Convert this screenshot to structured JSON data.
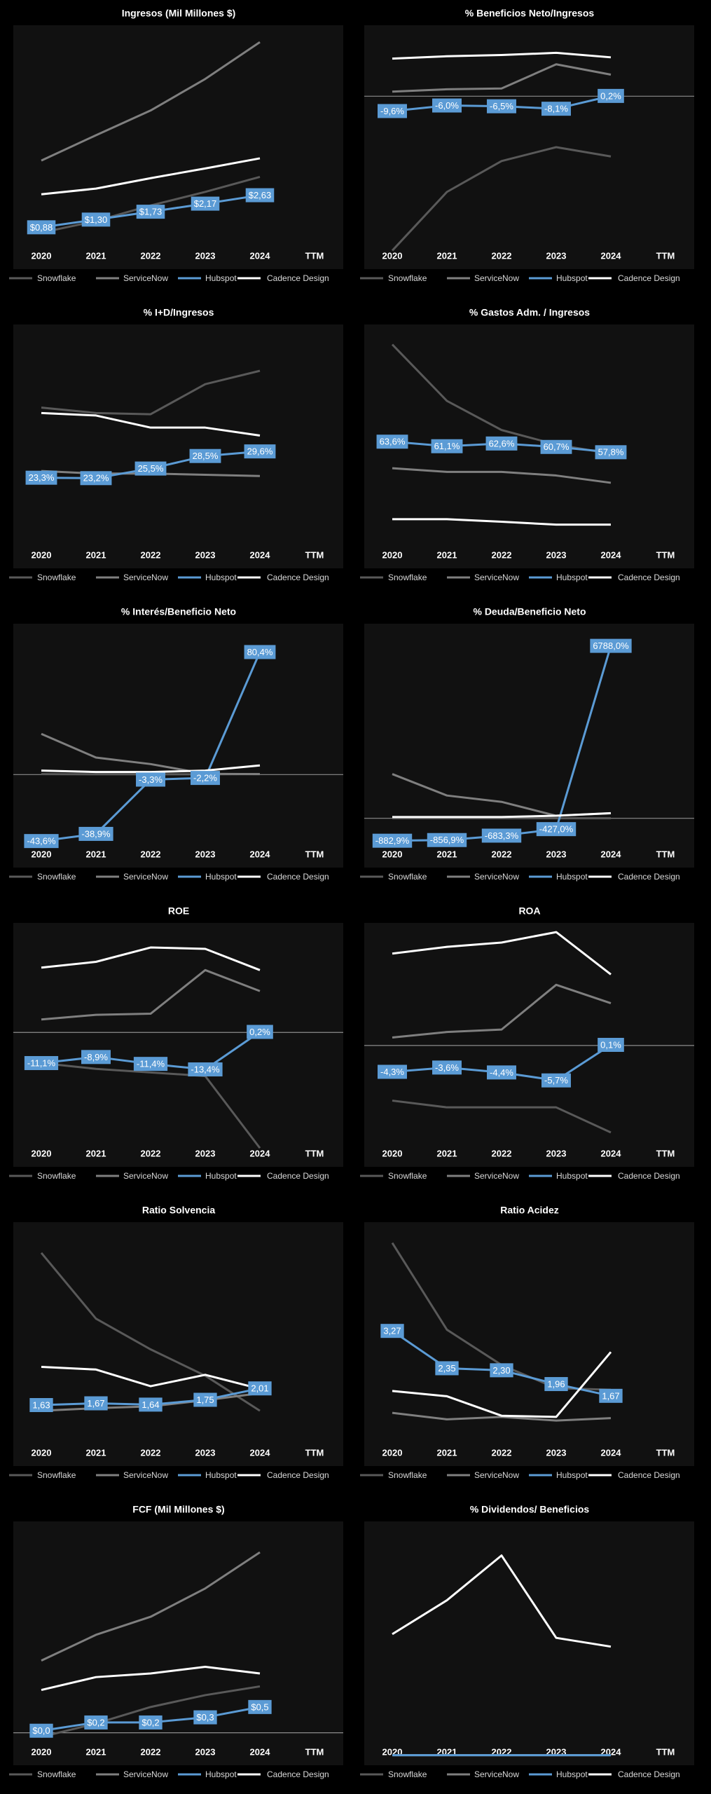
{
  "chart_data": [
    {
      "type": "line",
      "title": "Ingresos (Mil Millones $)",
      "categories": [
        "2020",
        "2021",
        "2022",
        "2023",
        "2024",
        "TTM"
      ],
      "ylim": [
        -1.4,
        11.9
      ],
      "zero_line": false,
      "series": [
        {
          "name": "Snowflake",
          "color": "#595959",
          "values": [
            0.59,
            1.22,
            2.07,
            2.81,
            3.63,
            null
          ]
        },
        {
          "name": "ServiceNow",
          "color": "#7f7f7f",
          "values": [
            4.52,
            5.9,
            7.25,
            8.97,
            10.98,
            null
          ]
        },
        {
          "name": "Hubspot",
          "color": "#5b9bd5",
          "values": [
            0.88,
            1.3,
            1.73,
            2.17,
            2.63,
            null
          ],
          "value_labels": [
            "$0,88",
            "$1,30",
            "$1,73",
            "$2,17",
            "$2,63",
            null
          ]
        },
        {
          "name": "Cadence Design",
          "color": "#ffffff",
          "values": [
            2.68,
            2.99,
            3.56,
            4.09,
            4.64,
            null
          ]
        }
      ]
    },
    {
      "type": "line",
      "title": "% Beneficios Neto/Ingresos",
      "categories": [
        "2020",
        "2021",
        "2022",
        "2023",
        "2024",
        "TTM"
      ],
      "ylim": [
        -112,
        46
      ],
      "zero_line": true,
      "series": [
        {
          "name": "Snowflake",
          "color": "#595959",
          "values": [
            -100,
            -62,
            -42,
            -33,
            -39,
            null
          ]
        },
        {
          "name": "ServiceNow",
          "color": "#7f7f7f",
          "values": [
            3,
            4.5,
            5,
            20.7,
            14,
            null
          ]
        },
        {
          "name": "Hubspot",
          "color": "#5b9bd5",
          "values": [
            -9.6,
            -6.0,
            -6.5,
            -8.1,
            0.2,
            null
          ],
          "value_labels": [
            "-9,6%",
            "-6,0%",
            "-6,5%",
            "-8,1%",
            "0,2%",
            null
          ]
        },
        {
          "name": "Cadence Design",
          "color": "#ffffff",
          "values": [
            24.4,
            25.9,
            26.7,
            28.1,
            25.2,
            null
          ]
        }
      ]
    },
    {
      "type": "line",
      "title": "% I+D/Ingresos",
      "categories": [
        "2020",
        "2021",
        "2022",
        "2023",
        "2024",
        "TTM"
      ],
      "ylim": [
        1.6,
        60
      ],
      "zero_line": false,
      "series": [
        {
          "name": "Snowflake",
          "color": "#595959",
          "values": [
            40.1,
            38.8,
            38.5,
            45.7,
            48.9,
            null
          ]
        },
        {
          "name": "ServiceNow",
          "color": "#7f7f7f",
          "values": [
            24.9,
            24.3,
            24.3,
            24.0,
            23.7,
            null
          ]
        },
        {
          "name": "Hubspot",
          "color": "#5b9bd5",
          "values": [
            23.3,
            23.2,
            25.5,
            28.5,
            29.6,
            null
          ],
          "value_labels": [
            "23,3%",
            "23,2%",
            "25,5%",
            "28,5%",
            "29,6%",
            null
          ]
        },
        {
          "name": "Cadence Design",
          "color": "#ffffff",
          "values": [
            38.8,
            38.2,
            35.3,
            35.3,
            33.4,
            null
          ]
        }
      ]
    },
    {
      "type": "line",
      "title": "% Gastos Adm. / Ingresos",
      "categories": [
        "2020",
        "2021",
        "2022",
        "2023",
        "2024",
        "TTM"
      ],
      "ylim": [
        -6,
        128
      ],
      "zero_line": false,
      "series": [
        {
          "name": "Snowflake",
          "color": "#595959",
          "values": [
            117,
            86,
            70,
            62,
            57,
            null
          ]
        },
        {
          "name": "ServiceNow",
          "color": "#7f7f7f",
          "values": [
            49,
            47,
            47,
            45,
            41,
            null
          ]
        },
        {
          "name": "Hubspot",
          "color": "#5b9bd5",
          "values": [
            63.6,
            61.1,
            62.6,
            60.7,
            57.8,
            null
          ],
          "value_labels": [
            "63,6%",
            "61,1%",
            "62,6%",
            "60,7%",
            "57,8%",
            null
          ]
        },
        {
          "name": "Cadence Design",
          "color": "#ffffff",
          "values": [
            21,
            21,
            19.6,
            18,
            18,
            null
          ]
        }
      ]
    },
    {
      "type": "line",
      "title": "% Interés/Beneficio Neto",
      "categories": [
        "2020",
        "2021",
        "2022",
        "2023",
        "2024",
        "TTM"
      ],
      "ylim": [
        -61,
        99
      ],
      "zero_line": true,
      "series": [
        {
          "name": "Snowflake",
          "color": "#595959",
          "values": [
            0.3,
            0.2,
            0.2,
            0.2,
            0.3,
            null
          ]
        },
        {
          "name": "ServiceNow",
          "color": "#7f7f7f",
          "values": [
            26.7,
            11.2,
            6.9,
            0.5,
            0.3,
            null
          ]
        },
        {
          "name": "Hubspot",
          "color": "#5b9bd5",
          "values": [
            -43.6,
            -38.9,
            -3.3,
            -2.2,
            80.4,
            null
          ],
          "value_labels": [
            "-43,6%",
            "-38,9%",
            "-3,3%",
            "-2,2%",
            "80,4%",
            null
          ]
        },
        {
          "name": "Cadence Design",
          "color": "#ffffff",
          "values": [
            2.6,
            1.7,
            1.7,
            2.6,
            6.0,
            null
          ]
        }
      ]
    },
    {
      "type": "line",
      "title": "% Deuda/Beneficio Neto",
      "categories": [
        "2020",
        "2021",
        "2022",
        "2023",
        "2024",
        "TTM"
      ],
      "ylim": [
        -1940,
        7660
      ],
      "zero_line": true,
      "series": [
        {
          "name": "Snowflake",
          "color": "#595959",
          "values": [
            0,
            0,
            0,
            0,
            0,
            null
          ]
        },
        {
          "name": "ServiceNow",
          "color": "#7f7f7f",
          "values": [
            1741,
            896,
            647,
            100,
            199,
            null
          ]
        },
        {
          "name": "Hubspot",
          "color": "#5b9bd5",
          "values": [
            -882.9,
            -856.9,
            -683.3,
            -427.0,
            6788.0,
            null
          ],
          "value_labels": [
            "-882,9%",
            "-856,9%",
            "-683,3%",
            "-427,0%",
            "6788,0%",
            null
          ]
        },
        {
          "name": "Cadence Design",
          "color": "#ffffff",
          "values": [
            50,
            50,
            50,
            100,
            200,
            null
          ]
        }
      ]
    },
    {
      "type": "line",
      "title": "ROE",
      "categories": [
        "2020",
        "2021",
        "2022",
        "2023",
        "2024",
        "TTM"
      ],
      "ylim": [
        -48.7,
        39.7
      ],
      "zero_line": true,
      "series": [
        {
          "name": "Snowflake",
          "color": "#595959",
          "values": [
            -11.1,
            -13.2,
            -14.5,
            -15.8,
            -41.9,
            null
          ]
        },
        {
          "name": "ServiceNow",
          "color": "#7f7f7f",
          "values": [
            4.7,
            6.4,
            6.8,
            22.6,
            15.0,
            null
          ]
        },
        {
          "name": "Hubspot",
          "color": "#5b9bd5",
          "values": [
            -11.1,
            -8.9,
            -11.4,
            -13.4,
            0.2,
            null
          ],
          "value_labels": [
            "-11,1%",
            "-8,9%",
            "-11,4%",
            "-13,4%",
            "0,2%",
            null
          ]
        },
        {
          "name": "Cadence Design",
          "color": "#ffffff",
          "values": [
            23.5,
            25.6,
            30.8,
            30.3,
            22.6,
            null
          ]
        }
      ]
    },
    {
      "type": "line",
      "title": "ROA",
      "categories": [
        "2020",
        "2021",
        "2022",
        "2023",
        "2024",
        "TTM"
      ],
      "ylim": [
        -19.8,
        20
      ],
      "zero_line": true,
      "series": [
        {
          "name": "Snowflake",
          "color": "#595959",
          "values": [
            -9,
            -10.1,
            -10.1,
            -10.1,
            -14.2,
            null
          ]
        },
        {
          "name": "ServiceNow",
          "color": "#7f7f7f",
          "values": [
            1.3,
            2.2,
            2.6,
            9.9,
            6.9,
            null
          ]
        },
        {
          "name": "Hubspot",
          "color": "#5b9bd5",
          "values": [
            -4.3,
            -3.6,
            -4.4,
            -5.7,
            0.1,
            null
          ],
          "value_labels": [
            "-4,3%",
            "-3,6%",
            "-4,4%",
            "-5,7%",
            "0,1%",
            null
          ]
        },
        {
          "name": "Cadence Design",
          "color": "#ffffff",
          "values": [
            15.0,
            16.1,
            16.8,
            18.5,
            11.6,
            null
          ]
        }
      ]
    },
    {
      "type": "line",
      "title": "Ratio Solvencia",
      "categories": [
        "2020",
        "2021",
        "2022",
        "2023",
        "2024",
        "TTM"
      ],
      "ylim": [
        0.24,
        5.8
      ],
      "zero_line": false,
      "series": [
        {
          "name": "Snowflake",
          "color": "#595959",
          "values": [
            5.1,
            3.6,
            2.9,
            2.3,
            1.5,
            null
          ]
        },
        {
          "name": "ServiceNow",
          "color": "#7f7f7f",
          "values": [
            1.5,
            1.56,
            1.6,
            1.74,
            1.9,
            null
          ]
        },
        {
          "name": "Hubspot",
          "color": "#5b9bd5",
          "values": [
            1.63,
            1.67,
            1.64,
            1.75,
            2.01,
            null
          ],
          "value_labels": [
            "1,63",
            "1,67",
            "1,64",
            "1,75",
            "2,01",
            null
          ]
        },
        {
          "name": "Cadence Design",
          "color": "#ffffff",
          "values": [
            2.5,
            2.44,
            2.06,
            2.32,
            2.0,
            null
          ]
        }
      ]
    },
    {
      "type": "line",
      "title": "Ratio Acidez",
      "categories": [
        "2020",
        "2021",
        "2022",
        "2023",
        "2024",
        "TTM"
      ],
      "ylim": [
        -0.06,
        5.95
      ],
      "zero_line": false,
      "series": [
        {
          "name": "Snowflake",
          "color": "#595959",
          "values": [
            5.44,
            3.3,
            2.43,
            1.86,
            1.82,
            null
          ]
        },
        {
          "name": "ServiceNow",
          "color": "#7f7f7f",
          "values": [
            1.25,
            1.09,
            1.15,
            1.06,
            1.12,
            null
          ]
        },
        {
          "name": "Hubspot",
          "color": "#5b9bd5",
          "values": [
            3.27,
            2.35,
            2.3,
            1.96,
            1.67,
            null
          ],
          "value_labels": [
            "3,27",
            "2,35",
            "2,30",
            "1,96",
            "1,67",
            null
          ]
        },
        {
          "name": "Cadence Design",
          "color": "#ffffff",
          "values": [
            1.79,
            1.66,
            1.18,
            1.15,
            2.75,
            null
          ]
        }
      ]
    },
    {
      "type": "line",
      "title": "FCF (Mil Millones $)",
      "categories": [
        "2020",
        "2021",
        "2022",
        "2023",
        "2024",
        "TTM"
      ],
      "ylim": [
        -0.63,
        4.1
      ],
      "zero_line": true,
      "series": [
        {
          "name": "Snowflake",
          "color": "#595959",
          "values": [
            -0.08,
            0.18,
            0.5,
            0.73,
            0.9,
            null
          ]
        },
        {
          "name": "ServiceNow",
          "color": "#7f7f7f",
          "values": [
            1.4,
            1.9,
            2.25,
            2.8,
            3.5,
            null
          ]
        },
        {
          "name": "Hubspot",
          "color": "#5b9bd5",
          "values": [
            0.04,
            0.2,
            0.2,
            0.3,
            0.5,
            null
          ],
          "value_labels": [
            "$0,0",
            "$0,2",
            "$0,2",
            "$0,3",
            "$0,5",
            null
          ]
        },
        {
          "name": "Cadence Design",
          "color": "#ffffff",
          "values": [
            0.83,
            1.08,
            1.15,
            1.28,
            1.15,
            null
          ]
        }
      ]
    },
    {
      "type": "line",
      "title": "% Dividendos/ Beneficios",
      "categories": [
        "2020",
        "2021",
        "2022",
        "2023",
        "2024",
        "TTM"
      ],
      "ylim": [
        -4.6,
        107
      ],
      "zero_line": false,
      "series": [
        {
          "name": "Snowflake",
          "color": "#595959",
          "values": [
            0,
            0,
            0,
            0,
            0,
            null
          ]
        },
        {
          "name": "ServiceNow",
          "color": "#7f7f7f",
          "values": [
            0,
            0,
            0,
            0,
            0,
            null
          ]
        },
        {
          "name": "Hubspot",
          "color": "#5b9bd5",
          "values": [
            0,
            0,
            0,
            0,
            0,
            null
          ]
        },
        {
          "name": "Cadence Design",
          "color": "#ffffff",
          "values": [
            55.4,
            70.9,
            91.4,
            53.7,
            49.7,
            null
          ]
        }
      ]
    }
  ]
}
